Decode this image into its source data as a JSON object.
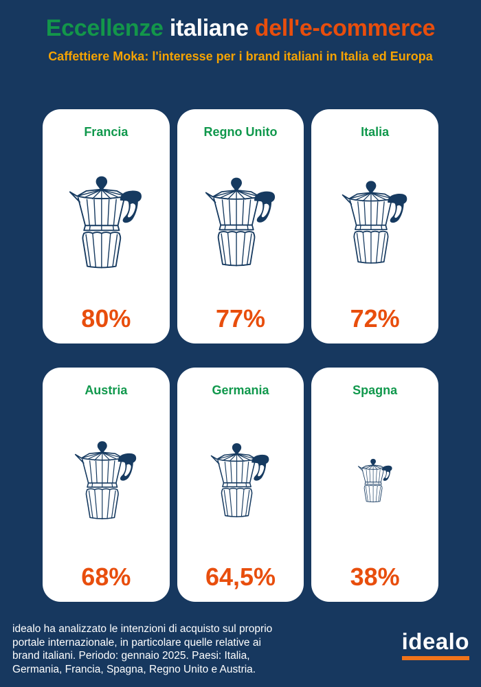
{
  "title": {
    "green": "Eccellenze",
    "white": "italiane",
    "orange": "dell'e-commerce"
  },
  "subtitle": "Caffettiere Moka: l'interesse per i brand italiani in Italia ed Europa",
  "cards": [
    {
      "country": "Francia",
      "value": "80%",
      "value_num": 80
    },
    {
      "country": "Regno Unito",
      "value": "77%",
      "value_num": 77
    },
    {
      "country": "Italia",
      "value": "72%",
      "value_num": 72
    },
    {
      "country": "Austria",
      "value": "68%",
      "value_num": 68
    },
    {
      "country": "Germania",
      "value": "64,5%",
      "value_num": 64.5
    },
    {
      "country": "Spagna",
      "value": "38%",
      "value_num": 38
    }
  ],
  "footer": {
    "lines": [
      "idealo ha analizzato le intenzioni di acquisto sul proprio",
      "portale internazionale, in particolare quelle relative ai",
      "brand italiani. Periodo: gennaio 2025. Paesi: Italia,",
      "Germania, Francia, Spagna, Regno Unito e Austria."
    ]
  },
  "logo": {
    "text": "idealo"
  },
  "icons": {
    "moka": "moka-pot-icon"
  },
  "colors": {
    "background": "#17385F",
    "card": "#FFFFFF",
    "green": "#13964A",
    "red_orange": "#E84E0D",
    "amber": "#F5A302",
    "icon_navy": "#163A60",
    "logo_underline": "#F0731A"
  },
  "chart_data": {
    "type": "bar",
    "variant": "pictogram",
    "categories": [
      "Francia",
      "Regno Unito",
      "Italia",
      "Austria",
      "Germania",
      "Spagna"
    ],
    "values": [
      80,
      77,
      72,
      68,
      64.5,
      38
    ],
    "value_labels": [
      "80%",
      "77%",
      "72%",
      "68%",
      "64,5%",
      "38%"
    ],
    "unit": "%",
    "title": "Eccellenze italiane dell'e-commerce",
    "subtitle": "Caffettiere Moka: l'interesse per i brand italiani in Italia ed Europa",
    "layout": "2 rows x 3 columns of cards; moka-pot icon size proportional to value",
    "legend": "none",
    "value_range": [
      0,
      100
    ]
  }
}
